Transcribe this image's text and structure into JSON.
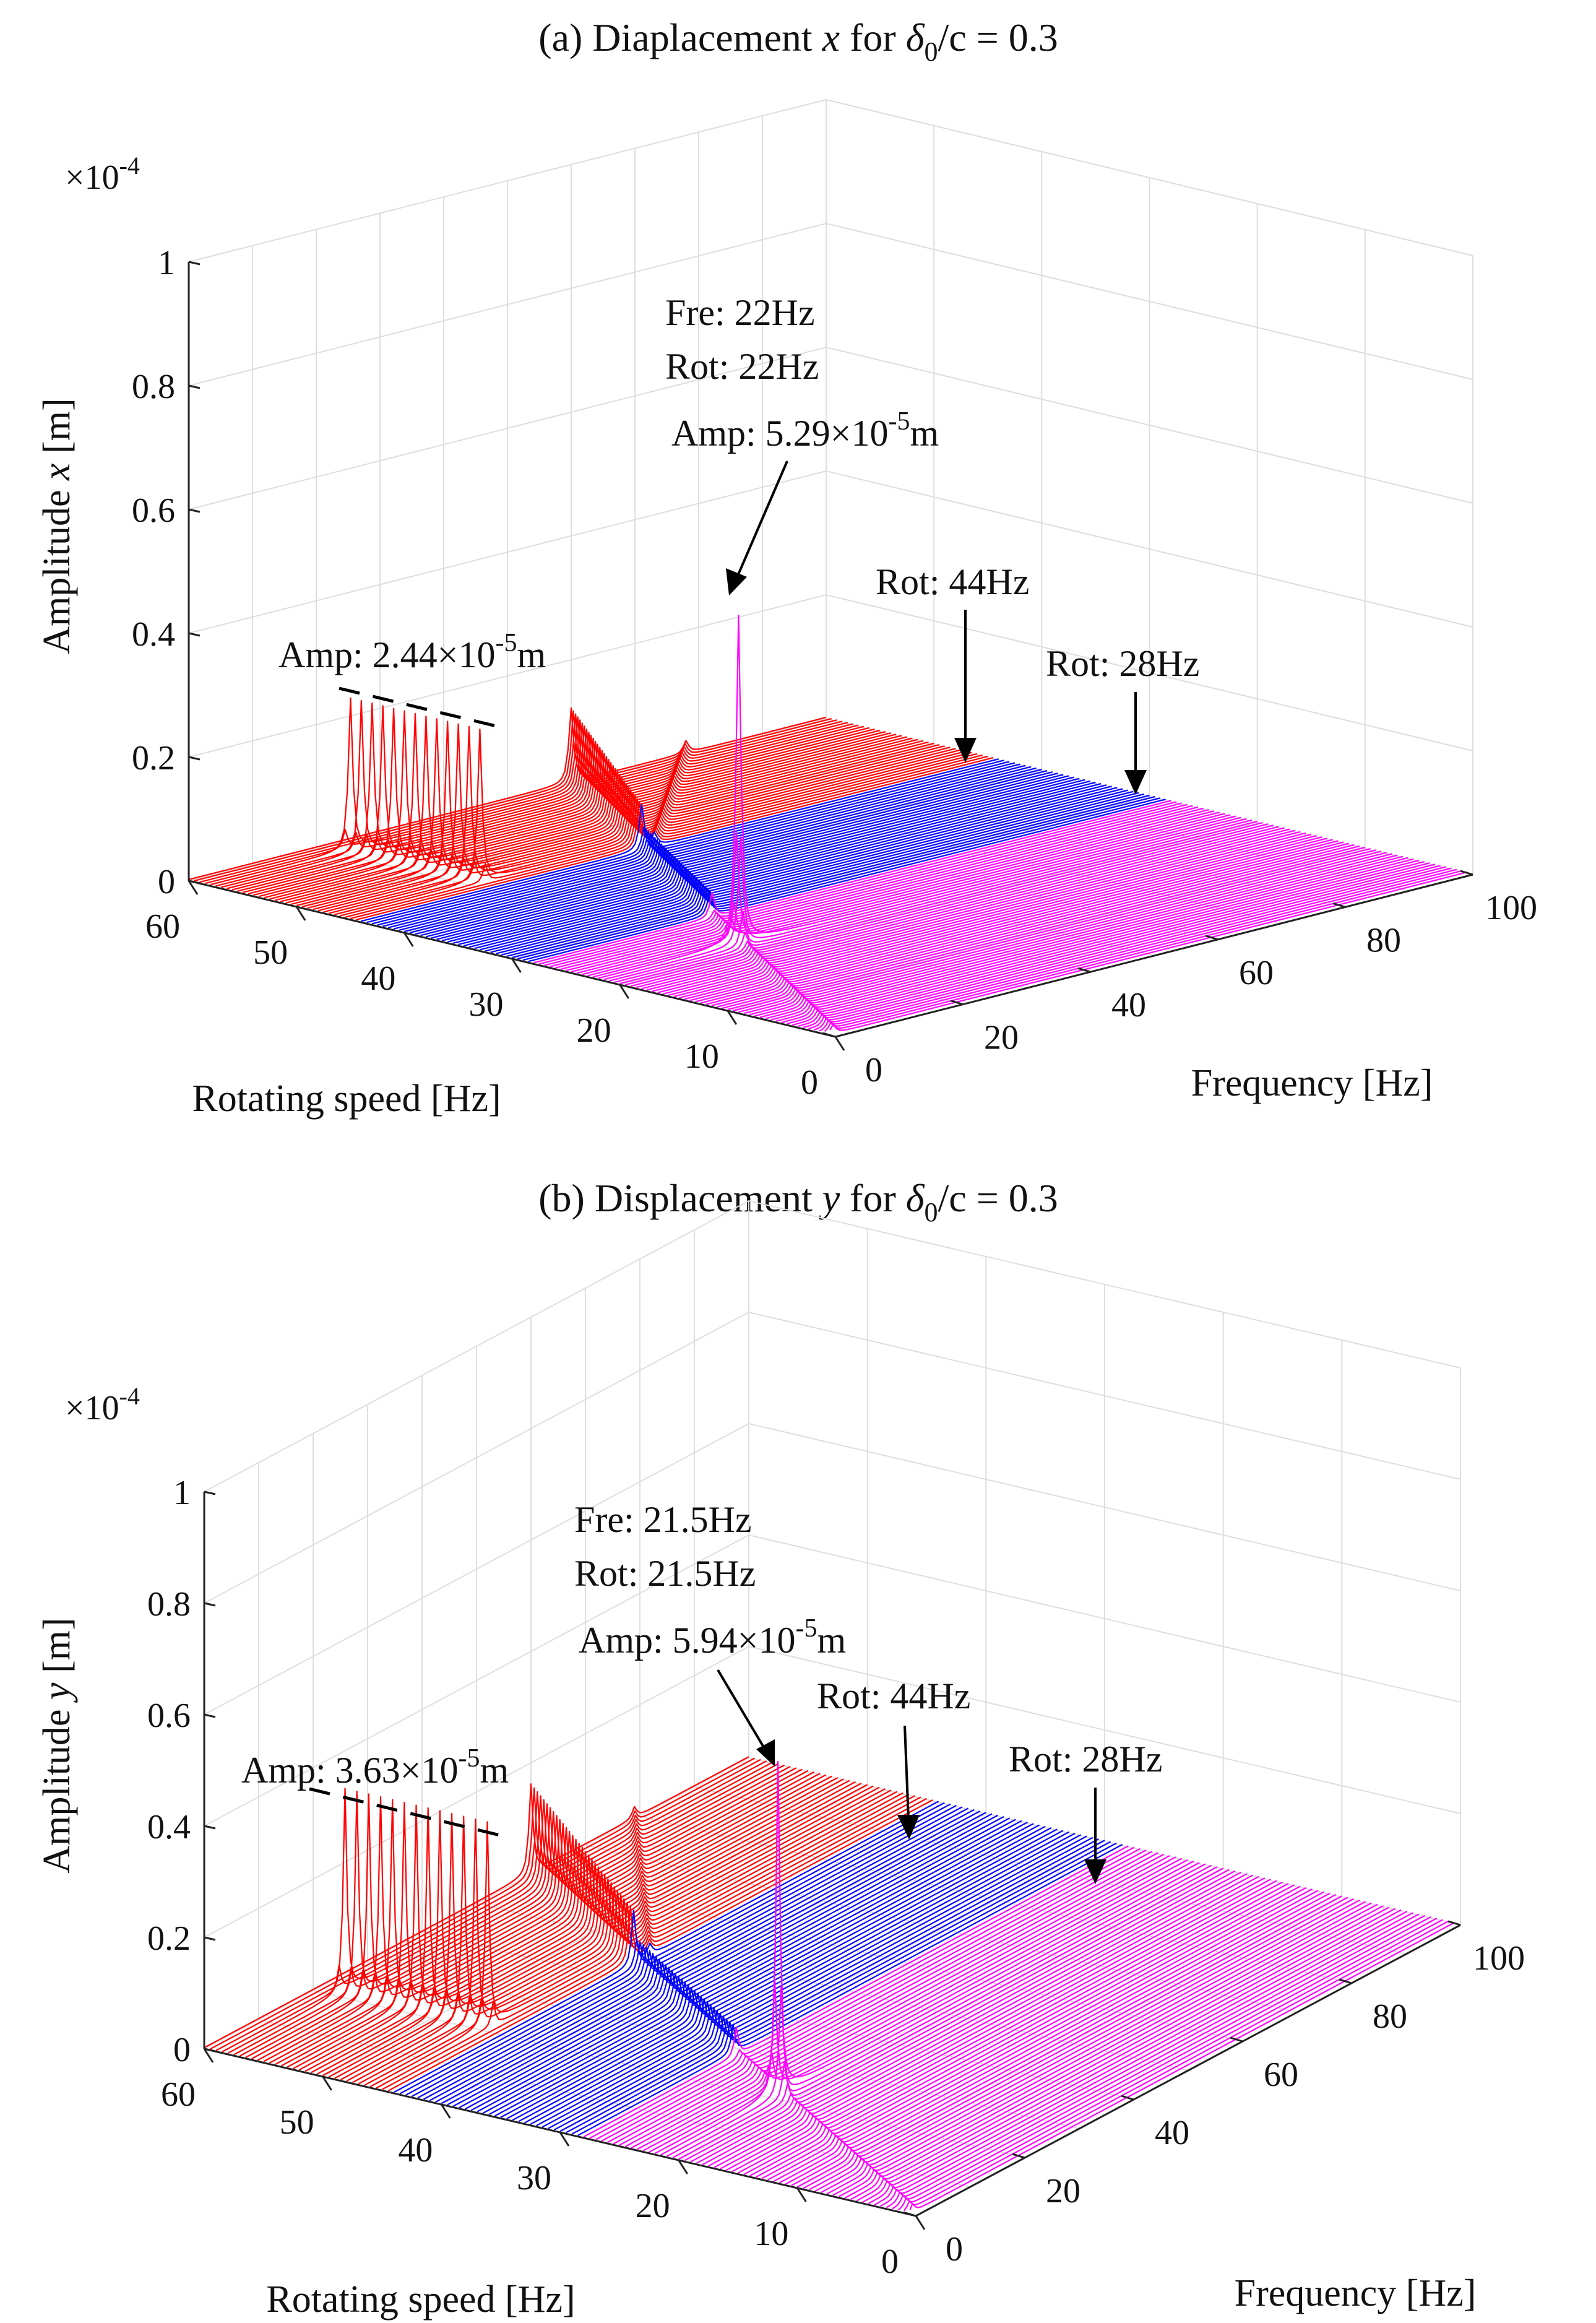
{
  "colors": {
    "high_speed": "#ff0000",
    "mid_speed": "#0000ff",
    "low_speed": "#ff00ff",
    "grid": "#dedede",
    "axis": "#222222",
    "annotation": "#000000"
  },
  "chart_data": [
    {
      "type": "waterfall-3d",
      "title_prefix": "(a) Diaplacement ",
      "title_var": "x",
      "title_mid": " for ",
      "title_delta": "δ",
      "title_sub": "0",
      "title_suffix": "/c = 0.3",
      "xlabel": "Frequency [Hz]",
      "ylabel": "Rotating speed [Hz]",
      "zlabel_prefix": "Amplitude ",
      "zlabel_var": "x",
      "zlabel_suffix": " [m]",
      "exponent_prefix": "×10",
      "exponent_power": "-4",
      "xlim": [
        0,
        100
      ],
      "ylim": [
        0,
        60
      ],
      "zlim": [
        0,
        1
      ],
      "xticks": [
        "0",
        "20",
        "40",
        "60",
        "80",
        "100"
      ],
      "yticks": [
        "0",
        "10",
        "20",
        "30",
        "40",
        "50",
        "60"
      ],
      "zticks": [
        "0",
        "0.2",
        "0.4",
        "0.6",
        "0.8",
        "1"
      ],
      "speed_bands": [
        {
          "name": "low",
          "from": 0,
          "to": 28,
          "color": "#ff00ff"
        },
        {
          "name": "mid",
          "from": 28,
          "to": 44,
          "color": "#0000ff"
        },
        {
          "name": "high",
          "from": 44,
          "to": 60,
          "color": "#ff0000"
        }
      ],
      "peaks": {
        "resonance": {
          "rot": 22,
          "fre": 22,
          "amp": 0.529
        },
        "subharmonic_amp": 0.244,
        "subharmonic_speeds": [
          46,
          47,
          48,
          49,
          50,
          51,
          52,
          53,
          54,
          55,
          56,
          57,
          58
        ],
        "synchronous_amp_high": 0.12,
        "synchronous_amp_mid": 0.04
      },
      "annotations": {
        "peak_fre": "Fre: 22Hz",
        "peak_rot": "Rot: 22Hz",
        "peak_amp_prefix": "Amp: 5.29×10",
        "peak_amp_power": "-5",
        "peak_amp_unit": "m",
        "sub_amp_prefix": "Amp: 2.44×10",
        "sub_amp_power": "-5",
        "sub_amp_unit": "m",
        "rot44": "Rot: 44Hz",
        "rot28": "Rot: 28Hz"
      }
    },
    {
      "type": "waterfall-3d",
      "title_prefix": "(b) Displacement ",
      "title_var": "y",
      "title_mid": " for ",
      "title_delta": "δ",
      "title_sub": "0",
      "title_suffix": "/c = 0.3",
      "xlabel": "Frequency [Hz]",
      "ylabel": "Rotating speed [Hz]",
      "zlabel_prefix": "Amplitude ",
      "zlabel_var": "y",
      "zlabel_suffix": " [m]",
      "exponent_prefix": "×10",
      "exponent_power": "-4",
      "xlim": [
        0,
        100
      ],
      "ylim": [
        0,
        60
      ],
      "zlim": [
        0,
        1
      ],
      "xticks": [
        "0",
        "20",
        "40",
        "60",
        "80",
        "100"
      ],
      "yticks": [
        "0",
        "10",
        "20",
        "30",
        "40",
        "50",
        "60"
      ],
      "zticks": [
        "0",
        "0.2",
        "0.4",
        "0.6",
        "0.8",
        "1"
      ],
      "speed_bands": [
        {
          "name": "low",
          "from": 0,
          "to": 28,
          "color": "#ff00ff"
        },
        {
          "name": "mid",
          "from": 28,
          "to": 44,
          "color": "#0000ff"
        },
        {
          "name": "high",
          "from": 44,
          "to": 60,
          "color": "#ff0000"
        }
      ],
      "peaks": {
        "resonance": {
          "rot": 21.5,
          "fre": 21.5,
          "amp": 0.594
        },
        "subharmonic_amp": 0.363,
        "subharmonic_speeds": [
          46,
          47,
          48,
          49,
          50,
          51,
          52,
          53,
          54,
          55,
          56,
          57,
          58
        ],
        "synchronous_amp_high": 0.16,
        "synchronous_amp_mid": 0.05
      },
      "annotations": {
        "peak_fre": "Fre: 21.5Hz",
        "peak_rot": "Rot: 21.5Hz",
        "peak_amp_prefix": "Amp: 5.94×10",
        "peak_amp_power": "-5",
        "peak_amp_unit": "m",
        "sub_amp_prefix": "Amp: 3.63×10",
        "sub_amp_power": "-5",
        "sub_amp_unit": "m",
        "rot44": "Rot: 44Hz",
        "rot28": "Rot: 28Hz"
      }
    }
  ]
}
